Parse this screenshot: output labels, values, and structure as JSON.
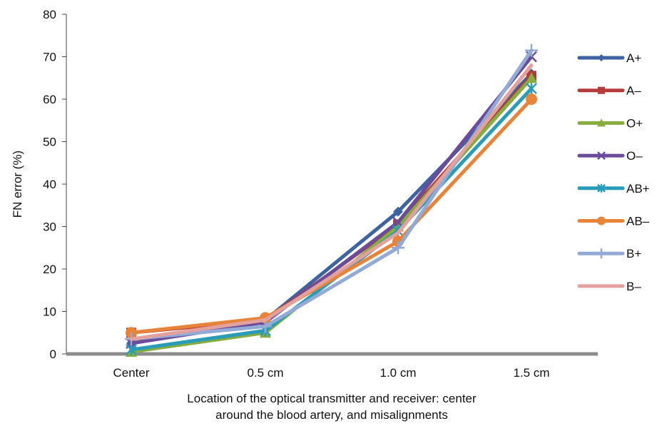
{
  "chart_data": {
    "type": "line",
    "title": "",
    "categories": [
      "Center",
      "0.5 cm",
      "1.0 cm",
      "1.5 cm"
    ],
    "ylabel": "FN error (%)",
    "xlabel_lines": [
      "Location of the optical transmitter and receiver: center",
      "around the blood artery, and misalignments"
    ],
    "ylim": [
      0,
      80
    ],
    "yticks": [
      "0",
      "10",
      "20",
      "30",
      "40",
      "50",
      "60",
      "70",
      "80"
    ],
    "grid": false,
    "legend_position": "right",
    "series": [
      {
        "name": "A+",
        "color": "#3d63a0",
        "marker": "diamond",
        "values": [
          2.5,
          8.0,
          33.5,
          66.0
        ]
      },
      {
        "name": "A–",
        "color": "#b33b39",
        "marker": "square",
        "values": [
          5.0,
          8.0,
          30.5,
          65.5
        ]
      },
      {
        "name": "O+",
        "color": "#87ad3e",
        "marker": "triangle",
        "values": [
          0.5,
          5.0,
          30.0,
          65.0
        ]
      },
      {
        "name": "O–",
        "color": "#6b4c9a",
        "marker": "x",
        "values": [
          2.5,
          7.5,
          31.0,
          70.0
        ]
      },
      {
        "name": "AB+",
        "color": "#2b9cb8",
        "marker": "star",
        "values": [
          1.0,
          5.5,
          29.0,
          62.5
        ]
      },
      {
        "name": "AB–",
        "color": "#e8843a",
        "marker": "circle",
        "values": [
          5.0,
          8.5,
          26.5,
          60.0
        ]
      },
      {
        "name": "B+",
        "color": "#93aad6",
        "marker": "plus",
        "values": [
          3.5,
          6.5,
          25.0,
          71.5
        ]
      },
      {
        "name": "B–",
        "color": "#e3a19e",
        "marker": "none",
        "values": [
          3.5,
          8.0,
          28.5,
          68.0
        ]
      }
    ]
  }
}
